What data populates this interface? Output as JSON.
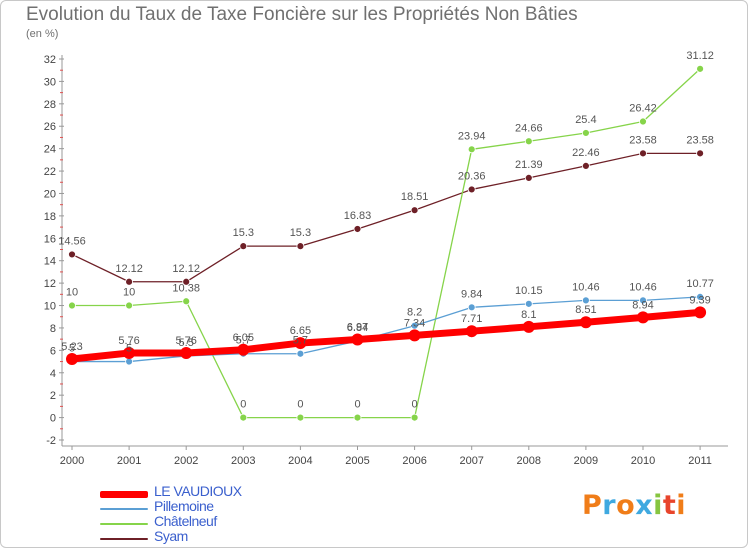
{
  "header": {
    "title": "Evolution du Taux de Taxe Foncière sur les Propriétés Non Bâties",
    "unit": "(en %)"
  },
  "logo": {
    "letters": [
      "P",
      "r",
      "o",
      "x",
      "i",
      "t",
      "i"
    ],
    "colors": [
      "#f07d19",
      "#3fa9e0",
      "#f07d19",
      "#3fa9e0",
      "#86c540",
      "#e8452c",
      "#f07d19"
    ]
  },
  "chart_data": {
    "type": "line",
    "title": "Evolution du Taux de Taxe Foncière sur les Propriétés Non Bâties",
    "ylabel": "(en %)",
    "xlabel": "",
    "x": [
      "2000",
      "2001",
      "2002",
      "2003",
      "2004",
      "2005",
      "2006",
      "2007",
      "2008",
      "2009",
      "2010",
      "2011"
    ],
    "ylim": [
      -2,
      32
    ],
    "yticks": [
      -2,
      0,
      2,
      4,
      6,
      8,
      10,
      12,
      14,
      16,
      18,
      20,
      22,
      24,
      26,
      28,
      30,
      32
    ],
    "grid": false,
    "legend_position": "bottom-left",
    "series": [
      {
        "name": "Syam",
        "color": "#6e2027",
        "width": 1.3,
        "marker": 3.5,
        "values": [
          14.56,
          12.12,
          12.12,
          15.3,
          15.3,
          16.83,
          18.51,
          20.36,
          21.39,
          22.46,
          23.58,
          23.58
        ],
        "labels": [
          "14.56",
          "12.12",
          "12.12",
          "15.3",
          "15.3",
          "16.83",
          "18.51",
          "20.36",
          "21.39",
          "22.46",
          "23.58",
          "23.58"
        ]
      },
      {
        "name": "Châtelneuf",
        "color": "#86d44a",
        "width": 1.3,
        "marker": 3.5,
        "values": [
          10,
          10,
          10.38,
          0,
          0,
          0,
          0,
          23.94,
          24.66,
          25.4,
          26.42,
          31.12
        ],
        "labels": [
          "10",
          "10",
          "10.38",
          "0",
          "0",
          "0",
          "0",
          "23.94",
          "24.66",
          "25.4",
          "26.42",
          "31.12"
        ]
      },
      {
        "name": "Pillemoine",
        "color": "#5b9fd4",
        "width": 1.3,
        "marker": 3.5,
        "values": [
          5,
          5,
          5.5,
          5.7,
          5.7,
          6.84,
          8.2,
          9.84,
          10.15,
          10.46,
          10.46,
          10.77
        ],
        "labels": [
          "5",
          "5",
          "5.5",
          "5.7",
          "5.7",
          "6.84",
          "8.2",
          "9.84",
          "10.15",
          "10.46",
          "10.46",
          "10.77"
        ]
      },
      {
        "name": "LE VAUDIOUX",
        "color": "#ff0000",
        "width": 7,
        "marker": 6,
        "values": [
          5.23,
          5.76,
          5.76,
          6.05,
          6.65,
          6.97,
          7.34,
          7.71,
          8.1,
          8.51,
          8.94,
          9.39
        ],
        "labels": [
          "5.23",
          "5.76",
          "5.76",
          "6.05",
          "6.65",
          "6.97",
          "7.34",
          "7.71",
          "8.1",
          "8.51",
          "8.94",
          "9.39"
        ]
      }
    ]
  },
  "legend": {
    "items": [
      {
        "label": "LE VAUDIOUX",
        "color": "#ff0000",
        "text_color": "#3a5fcd"
      },
      {
        "label": "Pillemoine",
        "color": "#5b9fd4",
        "text_color": "#3a5fcd"
      },
      {
        "label": "Châtelneuf",
        "color": "#86d44a",
        "text_color": "#3a5fcd"
      },
      {
        "label": "Syam",
        "color": "#6e2027",
        "text_color": "#3a5fcd"
      }
    ]
  }
}
